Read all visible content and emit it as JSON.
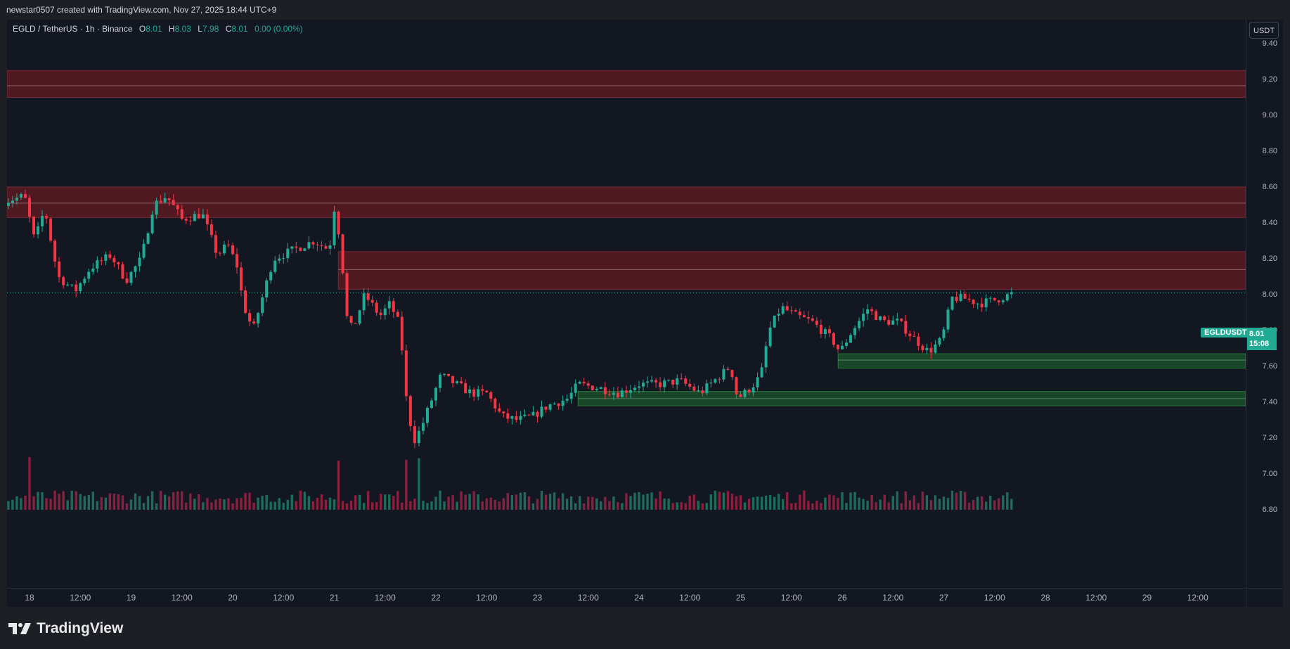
{
  "attribution": "newstar0507 created with TradingView.com, Nov 27, 2025 18:44 UTC+9",
  "legend": {
    "symbol": "EGLD / TetherUS · 1h · Binance",
    "o_label": "O",
    "o": "8.01",
    "h_label": "H",
    "h": "8.03",
    "l_label": "L",
    "l": "7.98",
    "c_label": "C",
    "c": "8.01",
    "change": "0.00 (0.00%)"
  },
  "price_unit": "USDT",
  "last_price_tag": {
    "ticker": "EGLDUSDT",
    "price": "8.01",
    "countdown": "15:08"
  },
  "brand": {
    "name": "TradingView",
    "logo_icon": "tradingview-logo-icon"
  },
  "colors": {
    "up": "#22ab94",
    "down": "#f23645",
    "up_volume": "#1e6b5b",
    "down_volume": "#8a1f3e",
    "resistance_zone": "#5c1a22",
    "support_zone": "#1b4a2a",
    "background": "#131722",
    "frame": "#1e1f24"
  },
  "chart_data": {
    "type": "candlestick",
    "symbol": "EGLD / TetherUS",
    "interval": "1h",
    "exchange": "Binance",
    "ylim": [
      6.8,
      9.45
    ],
    "y_ticks": [
      "9.40",
      "9.20",
      "9.00",
      "8.80",
      "8.60",
      "8.40",
      "8.20",
      "8.00",
      "7.80",
      "7.60",
      "7.40",
      "7.20",
      "7.00",
      "6.80"
    ],
    "x_ticks": [
      "18",
      "12:00",
      "19",
      "12:00",
      "20",
      "12:00",
      "21",
      "12:00",
      "22",
      "12:00",
      "23",
      "12:00",
      "24",
      "12:00",
      "25",
      "12:00",
      "26",
      "12:00",
      "27",
      "12:00",
      "28",
      "12:00",
      "29",
      "12:00"
    ],
    "last_close": 8.01,
    "resistance_zones": [
      {
        "low": 9.1,
        "high": 9.25,
        "mid": 9.165,
        "from_day": 17.75
      },
      {
        "low": 8.43,
        "high": 8.6,
        "mid": 8.51,
        "from_day": 17.75
      },
      {
        "low": 8.03,
        "high": 8.24,
        "mid": 8.14,
        "from_day": 21.04
      }
    ],
    "support_zones": [
      {
        "low": 7.59,
        "high": 7.67,
        "mid": 7.635,
        "from_day": 25.96
      },
      {
        "low": 7.38,
        "high": 7.46,
        "mid": 7.42,
        "from_day": 23.4
      }
    ],
    "price_path": [
      [
        17.75,
        8.52
      ],
      [
        17.95,
        8.55
      ],
      [
        18.05,
        8.3
      ],
      [
        18.15,
        8.48
      ],
      [
        18.28,
        8.1
      ],
      [
        18.45,
        8.02
      ],
      [
        18.6,
        8.15
      ],
      [
        18.8,
        8.22
      ],
      [
        18.95,
        8.08
      ],
      [
        19.1,
        8.2
      ],
      [
        19.22,
        8.5
      ],
      [
        19.35,
        8.55
      ],
      [
        19.5,
        8.42
      ],
      [
        19.7,
        8.45
      ],
      [
        19.85,
        8.22
      ],
      [
        19.95,
        8.28
      ],
      [
        20.05,
        8.15
      ],
      [
        20.1,
        7.95
      ],
      [
        20.2,
        7.8
      ],
      [
        20.3,
        8.0
      ],
      [
        20.4,
        8.2
      ],
      [
        20.6,
        8.25
      ],
      [
        20.8,
        8.3
      ],
      [
        20.95,
        8.25
      ],
      [
        21.0,
        8.48
      ],
      [
        21.06,
        8.3
      ],
      [
        21.12,
        7.88
      ],
      [
        21.18,
        7.8
      ],
      [
        21.3,
        8.0
      ],
      [
        21.45,
        7.88
      ],
      [
        21.55,
        7.95
      ],
      [
        21.65,
        7.82
      ],
      [
        21.7,
        7.45
      ],
      [
        21.78,
        7.18
      ],
      [
        21.85,
        7.25
      ],
      [
        21.95,
        7.4
      ],
      [
        22.05,
        7.55
      ],
      [
        22.2,
        7.5
      ],
      [
        22.35,
        7.45
      ],
      [
        22.5,
        7.45
      ],
      [
        22.65,
        7.32
      ],
      [
        22.8,
        7.3
      ],
      [
        22.95,
        7.32
      ],
      [
        23.1,
        7.38
      ],
      [
        23.3,
        7.42
      ],
      [
        23.4,
        7.5
      ],
      [
        23.6,
        7.48
      ],
      [
        23.8,
        7.45
      ],
      [
        24.0,
        7.5
      ],
      [
        24.2,
        7.5
      ],
      [
        24.4,
        7.52
      ],
      [
        24.6,
        7.45
      ],
      [
        24.8,
        7.55
      ],
      [
        24.9,
        7.6
      ],
      [
        24.97,
        7.42
      ],
      [
        25.1,
        7.48
      ],
      [
        25.2,
        7.55
      ],
      [
        25.28,
        7.8
      ],
      [
        25.4,
        7.93
      ],
      [
        25.55,
        7.88
      ],
      [
        25.7,
        7.85
      ],
      [
        25.8,
        7.8
      ],
      [
        25.9,
        7.75
      ],
      [
        25.98,
        7.68
      ],
      [
        26.1,
        7.8
      ],
      [
        26.25,
        7.92
      ],
      [
        26.4,
        7.85
      ],
      [
        26.55,
        7.85
      ],
      [
        26.7,
        7.76
      ],
      [
        26.85,
        7.68
      ],
      [
        26.98,
        7.75
      ],
      [
        27.08,
        7.98
      ],
      [
        27.2,
        7.98
      ],
      [
        27.35,
        7.95
      ],
      [
        27.5,
        7.97
      ],
      [
        27.7,
        8.01
      ]
    ],
    "volume_peaks": [
      {
        "day": 18.0,
        "up": true,
        "rel": 1.0
      },
      {
        "day": 21.05,
        "up": false,
        "rel": 0.93
      },
      {
        "day": 21.7,
        "up": false,
        "rel": 0.95
      },
      {
        "day": 21.85,
        "up": true,
        "rel": 0.98
      },
      {
        "day": 27.7,
        "up": true,
        "rel": 0.55
      }
    ]
  }
}
